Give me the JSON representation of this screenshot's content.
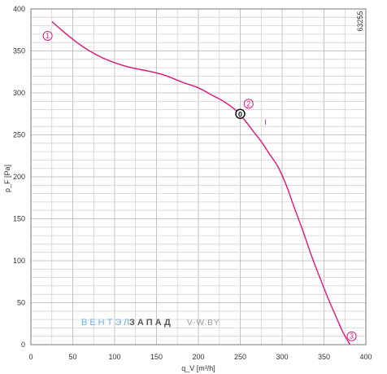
{
  "chart_data": {
    "type": "line",
    "xlabel": "q_V [m³/h]",
    "ylabel": "p_F [Pa]",
    "xlim": [
      0,
      400
    ],
    "ylim": [
      0,
      400
    ],
    "xticks": [
      0,
      50,
      100,
      150,
      200,
      250,
      300,
      350,
      400
    ],
    "yticks": [
      0,
      50,
      100,
      150,
      200,
      250,
      300,
      350,
      400
    ],
    "grid": true,
    "figure_id": "63255",
    "curve_label": "I",
    "series": [
      {
        "color": "#e0147a",
        "x": [
          25,
          40,
          55,
          70,
          85,
          100,
          120,
          140,
          160,
          180,
          200,
          215,
          230,
          245,
          255,
          265,
          275,
          285,
          295,
          305,
          315,
          325,
          335,
          345,
          355,
          365,
          372,
          377,
          381
        ],
        "y": [
          385,
          372,
          360,
          350,
          342,
          336,
          330,
          326,
          321,
          313,
          306,
          298,
          290,
          279,
          268,
          255,
          242,
          227,
          212,
          190,
          162,
          135,
          106,
          80,
          55,
          32,
          16,
          7,
          0
        ]
      }
    ],
    "markers": [
      {
        "label": "1",
        "x": 20,
        "y": 368
      },
      {
        "label": "2",
        "x": 260,
        "y": 287
      },
      {
        "label": "3",
        "x": 383,
        "y": 10
      }
    ],
    "operating_point": {
      "label": "0",
      "x": 250,
      "y": 275
    }
  },
  "watermark": {
    "part1": "ВЕНТЭЛ",
    "part2": "ЗАПАД",
    "part3": "V-W.BY",
    "color1": "#6aaee0",
    "color2": "#555555",
    "color3": "#9a9a9a"
  }
}
